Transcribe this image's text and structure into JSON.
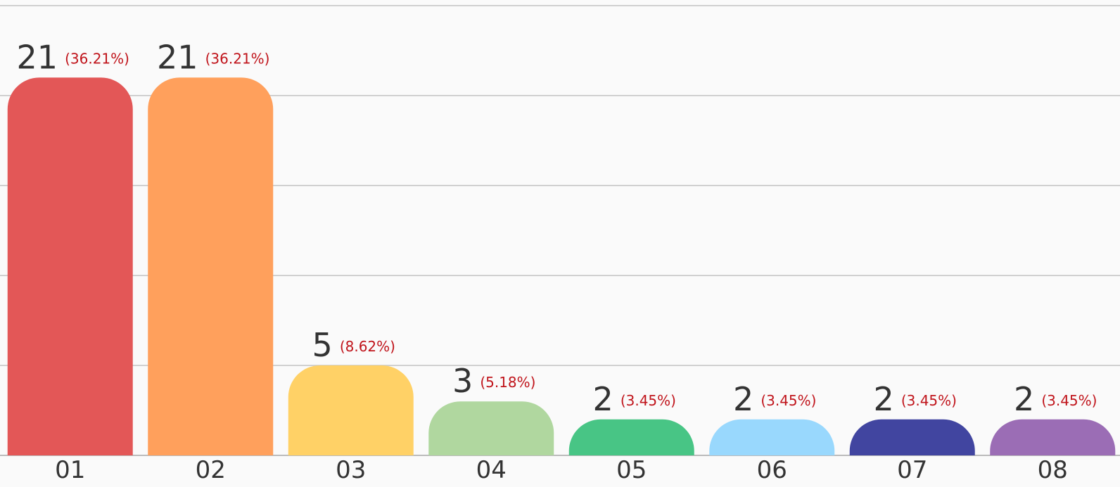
{
  "chart_data": {
    "type": "bar",
    "categories": [
      "01",
      "02",
      "03",
      "04",
      "05",
      "06",
      "07",
      "08"
    ],
    "values": [
      21,
      21,
      5,
      3,
      2,
      2,
      2,
      2
    ],
    "percent_labels": [
      "(36.21%)",
      "(36.21%)",
      "(8.62%)",
      "(5.18%)",
      "(3.45%)",
      "(3.45%)",
      "(3.45%)",
      "(3.45%)"
    ],
    "colors": [
      "#e35757",
      "#ffa05c",
      "#ffd166",
      "#b0d79f",
      "#48c585",
      "#99d8fd",
      "#4145a0",
      "#9b6db5"
    ],
    "ylim": [
      0,
      25
    ],
    "yticks": [
      0,
      5,
      10,
      15,
      20,
      25
    ],
    "grid": true
  }
}
